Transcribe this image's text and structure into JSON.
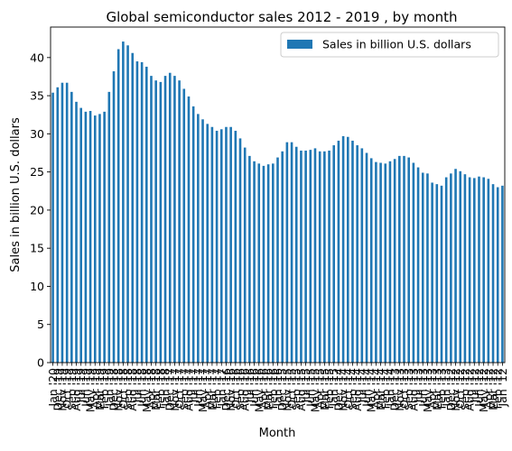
{
  "chart_data": {
    "type": "bar",
    "title": "Global semiconductor sales 2012 - 2019 , by month",
    "xlabel": "Month",
    "ylabel": "Sales in billion U.S. dollars",
    "ylim": [
      0,
      44
    ],
    "yticks": [
      0,
      5,
      10,
      15,
      20,
      25,
      30,
      35,
      40
    ],
    "grid": false,
    "legend_position": "top-right",
    "bar_color": "#1f77b4",
    "categories": [
      "Jan '20",
      "Dec '19",
      "Nov '19",
      "Oct '19",
      "Sep '19",
      "Aug '19",
      "Jul '19",
      "Jun '19",
      "May '19",
      "Apr '19",
      "Mar '19",
      "Feb '19",
      "Jan '19",
      "Dec '18",
      "Nov '18",
      "Oct '18",
      "Sep '18",
      "Aug '18",
      "Jul '18",
      "Jun '18",
      "May '18",
      "Apr '18",
      "Mar '18",
      "Feb '18",
      "Jan '18",
      "Dec '17",
      "Nov '17",
      "Oct '17",
      "Sep '17",
      "Aug '17",
      "Jul '17",
      "Jun '17",
      "May '17",
      "Apr '17",
      "Mar '17",
      "Feb '17",
      "Jan '17",
      "Dec '16",
      "Nov '16",
      "Oct '16",
      "Sep '16",
      "Aug '16",
      "Jul '16",
      "Jun '16",
      "May '16",
      "Apr '16",
      "Mar '16",
      "Feb '16",
      "Jan '16",
      "Dec '15",
      "Nov '15",
      "Oct '15",
      "Sep '15",
      "Aug '15",
      "Jul '15",
      "Jun '15",
      "May '15",
      "Apr '15",
      "Mar '15",
      "Feb '15",
      "Jan '15",
      "Dec '14",
      "Nov '14",
      "Oct '14",
      "Sep '14",
      "Aug '14",
      "Jul '14",
      "Jun '14",
      "May '14",
      "Apr '14",
      "Mar '14",
      "Feb '14",
      "Jan '14",
      "Dec '13",
      "Nov '13",
      "Oct '13",
      "Sep '13",
      "Aug '13",
      "Jul '13",
      "Jun '13",
      "May '13",
      "Apr '13",
      "Mar '13",
      "Feb '13",
      "Jan '13",
      "Dec '12",
      "Nov '12",
      "Oct '12",
      "Sep '12",
      "Aug '12",
      "Jul '12",
      "Jun '12",
      "May '12",
      "Apr '12",
      "Mar '12",
      "Feb '12",
      "Jan '12"
    ],
    "series": [
      {
        "name": "Sales in billion U.S. dollars",
        "values": [
          35.4,
          36.1,
          36.7,
          36.7,
          35.5,
          34.2,
          33.4,
          32.9,
          33.0,
          32.4,
          32.6,
          32.9,
          35.5,
          38.2,
          41.1,
          42.1,
          41.6,
          40.6,
          39.5,
          39.4,
          38.8,
          37.6,
          37.0,
          36.8,
          37.6,
          38.0,
          37.6,
          37.0,
          35.9,
          34.9,
          33.6,
          32.6,
          31.9,
          31.3,
          30.9,
          30.4,
          30.6,
          30.9,
          30.9,
          30.4,
          29.4,
          28.2,
          27.1,
          26.4,
          26.1,
          25.8,
          26.0,
          26.1,
          26.9,
          27.7,
          28.9,
          28.9,
          28.3,
          27.8,
          27.8,
          27.9,
          28.1,
          27.7,
          27.7,
          27.8,
          28.5,
          29.1,
          29.7,
          29.6,
          29.1,
          28.5,
          28.1,
          27.5,
          26.8,
          26.3,
          26.2,
          26.1,
          26.4,
          26.7,
          27.1,
          27.1,
          26.9,
          26.2,
          25.6,
          24.9,
          24.8,
          23.6,
          23.4,
          23.2,
          24.3,
          24.8,
          25.4,
          25.1,
          24.7,
          24.3,
          24.2,
          24.4,
          24.3,
          24.1,
          23.4,
          23.0,
          23.2
        ]
      }
    ]
  }
}
